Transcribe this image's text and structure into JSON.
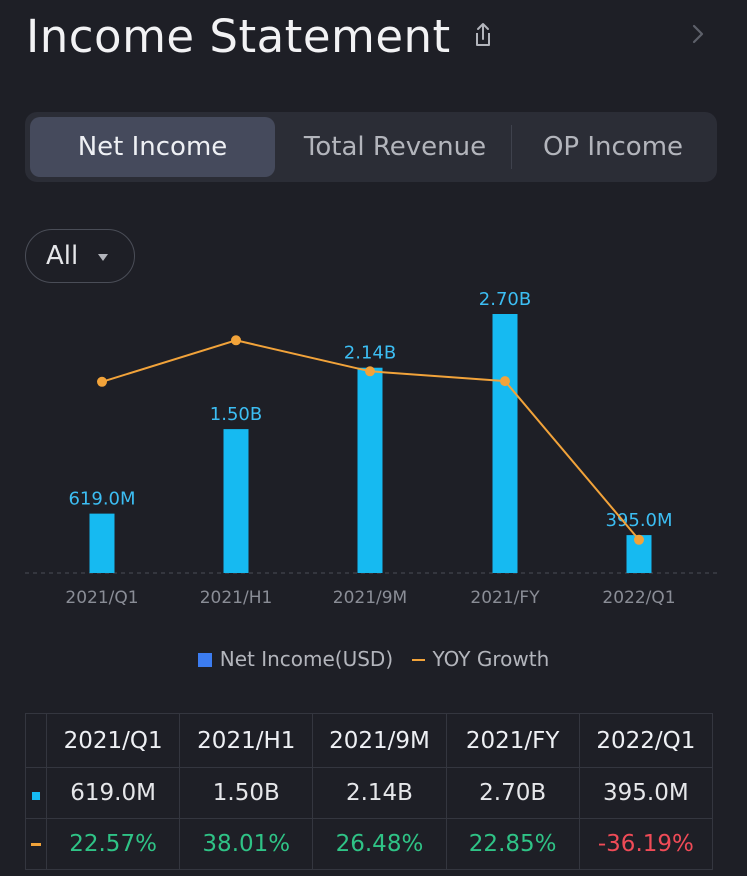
{
  "header": {
    "title": "Income Statement"
  },
  "tabs": [
    {
      "label": "Net Income",
      "active": true
    },
    {
      "label": "Total Revenue",
      "active": false
    },
    {
      "label": "OP Income",
      "active": false
    }
  ],
  "filter": {
    "label": "All"
  },
  "legend": {
    "bar": "Net Income(USD)",
    "line": "YOY Growth"
  },
  "colors": {
    "bar": "#16baf1",
    "line": "#f2a33a",
    "positive": "#2fc386",
    "negative": "#f04b57"
  },
  "chart_data": {
    "type": "bar",
    "categories": [
      "2021/Q1",
      "2021/H1",
      "2021/9M",
      "2021/FY",
      "2022/Q1"
    ],
    "series": [
      {
        "name": "Net Income(USD)",
        "values": [
          619.0,
          1500,
          2140,
          2700,
          395.0
        ],
        "labels": [
          "619.0M",
          "1.50B",
          "2.14B",
          "2.70B",
          "395.0M"
        ],
        "unit": "M USD"
      },
      {
        "name": "YOY Growth",
        "type": "line",
        "values": [
          22.57,
          38.01,
          26.48,
          22.85,
          -36.19
        ],
        "unit": "%"
      }
    ],
    "ylim": [
      0,
      2700
    ],
    "yoy_lim": [
      -40,
      40
    ]
  },
  "table": {
    "headers": [
      "2021/Q1",
      "2021/H1",
      "2021/9M",
      "2021/FY",
      "2022/Q1"
    ],
    "rows": [
      {
        "marker": "bar",
        "cells": [
          "619.0M",
          "1.50B",
          "2.14B",
          "2.70B",
          "395.0M"
        ]
      },
      {
        "marker": "line",
        "cells": [
          "22.57%",
          "38.01%",
          "26.48%",
          "22.85%",
          "-36.19%"
        ]
      }
    ]
  }
}
